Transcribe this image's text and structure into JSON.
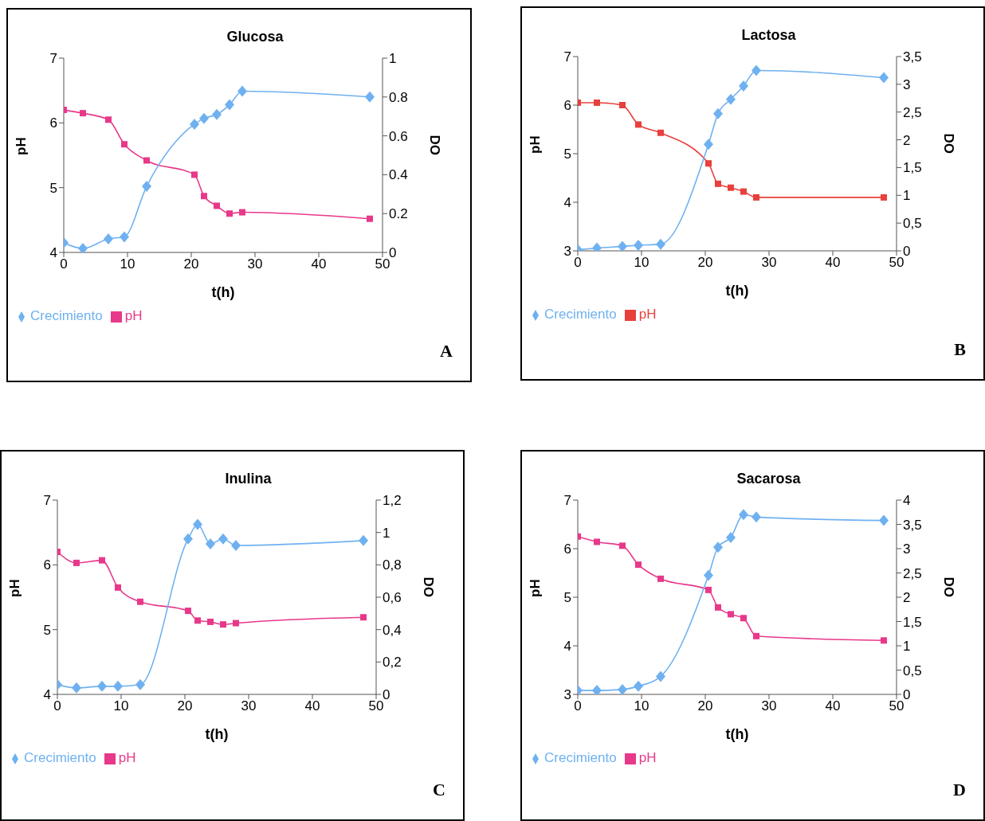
{
  "chart_data": [
    {
      "type": "line",
      "title": "Glucosa",
      "xlabel": "t(h)",
      "ylabel": "pH",
      "y2label": "DO",
      "x": [
        0,
        3,
        7,
        9.5,
        13,
        20.5,
        22,
        24,
        26,
        28,
        48
      ],
      "xlim": [
        0,
        50
      ],
      "xticks": [
        0,
        10,
        20,
        30,
        40,
        50
      ],
      "ylim": [
        4,
        7
      ],
      "yticks": [
        4,
        5,
        6,
        7
      ],
      "y2lim": [
        0,
        1
      ],
      "y2ticks": [
        0,
        0.2,
        0.4,
        0.6,
        0.8,
        1
      ],
      "legend": "bottom left",
      "grid": false,
      "line_style": "solid",
      "annotations": [
        "A"
      ],
      "series": [
        {
          "name": "pH",
          "color": "#e8388a",
          "marker": "square",
          "values": [
            6.2,
            6.15,
            6.05,
            5.67,
            5.42,
            5.2,
            4.87,
            4.72,
            4.6,
            4.62,
            4.52
          ]
        },
        {
          "name": "Crecimiento",
          "color": "#6fb1f0",
          "marker": "diamond",
          "axis": "y2",
          "values": [
            0.05,
            0.02,
            0.07,
            0.08,
            0.34,
            0.66,
            0.69,
            0.71,
            0.76,
            0.83,
            0.8
          ]
        }
      ]
    },
    {
      "type": "line",
      "title": "Lactosa",
      "xlabel": "t(h)",
      "ylabel": "pH",
      "y2label": "DO",
      "x": [
        0,
        3,
        7,
        9.5,
        13,
        20.5,
        22,
        24,
        26,
        28,
        48
      ],
      "xlim": [
        0,
        50
      ],
      "xticks": [
        0,
        10,
        20,
        30,
        40,
        50
      ],
      "ylim": [
        3,
        7
      ],
      "yticks": [
        3,
        4,
        5,
        6,
        7
      ],
      "y2lim": [
        0,
        3.5
      ],
      "y2ticks": [
        0,
        {
          "value": 0.5,
          "label": "0,5"
        },
        1,
        {
          "value": 1.5,
          "label": "1,5"
        },
        2,
        {
          "value": 2.5,
          "label": "2,5"
        },
        3,
        {
          "value": 3.5,
          "label": "3,5"
        }
      ],
      "legend": "bottom left",
      "grid": false,
      "line_style": "solid",
      "annotations": [
        "B"
      ],
      "series": [
        {
          "name": "pH",
          "color": "#e8403c",
          "marker": "square",
          "values": [
            6.05,
            6.05,
            6.0,
            5.6,
            5.43,
            4.8,
            4.38,
            4.3,
            4.22,
            4.1,
            4.1
          ]
        },
        {
          "name": "Crecimiento",
          "color": "#6fb1f0",
          "marker": "diamond",
          "axis": "y2",
          "values": [
            0.02,
            0.05,
            0.08,
            0.1,
            0.12,
            1.92,
            2.47,
            2.73,
            2.97,
            3.25,
            3.12
          ]
        }
      ]
    },
    {
      "type": "line",
      "title": "Inulina",
      "xlabel": "t(h)",
      "ylabel": "pH",
      "y2label": "DO",
      "x": [
        0,
        3,
        7,
        9.5,
        13,
        20.5,
        22,
        24,
        26,
        28,
        48
      ],
      "xlim": [
        0,
        50
      ],
      "xticks": [
        0,
        10,
        20,
        30,
        40,
        50
      ],
      "ylim": [
        4,
        7
      ],
      "yticks": [
        4,
        5,
        6,
        7
      ],
      "y2lim": [
        0,
        1.2
      ],
      "y2ticks": [
        0,
        {
          "value": 0.2,
          "label": "0,2"
        },
        {
          "value": 0.4,
          "label": "0,4"
        },
        {
          "value": 0.6,
          "label": "0,6"
        },
        {
          "value": 0.8,
          "label": "0,8"
        },
        1,
        {
          "value": 1.2,
          "label": "1,2"
        }
      ],
      "legend": "bottom left",
      "grid": false,
      "line_style": "solid",
      "annotations": [
        "C"
      ],
      "series": [
        {
          "name": "pH",
          "color": "#e8388a",
          "marker": "square",
          "values": [
            6.2,
            6.03,
            6.07,
            5.65,
            5.43,
            5.29,
            5.14,
            5.12,
            5.08,
            5.1,
            5.19
          ]
        },
        {
          "name": "Crecimiento",
          "color": "#6fb1f0",
          "marker": "diamond",
          "axis": "y2",
          "values": [
            0.06,
            0.04,
            0.05,
            0.05,
            0.06,
            0.96,
            1.05,
            0.93,
            0.96,
            0.92,
            0.95
          ]
        }
      ]
    },
    {
      "type": "line",
      "title": "Sacarosa",
      "xlabel": "t(h)",
      "ylabel": "pH",
      "y2label": "DO",
      "x": [
        0,
        3,
        7,
        9.5,
        13,
        20.5,
        22,
        24,
        26,
        28,
        48
      ],
      "xlim": [
        0,
        50
      ],
      "xticks": [
        0,
        10,
        20,
        30,
        40,
        50
      ],
      "ylim": [
        3,
        7
      ],
      "yticks": [
        3,
        4,
        5,
        6,
        7
      ],
      "y2lim": [
        0,
        4
      ],
      "y2ticks": [
        0,
        {
          "value": 0.5,
          "label": "0,5"
        },
        1,
        {
          "value": 1.5,
          "label": "1,5"
        },
        2,
        {
          "value": 2.5,
          "label": "2,5"
        },
        3,
        {
          "value": 3.5,
          "label": "3,5"
        },
        4
      ],
      "legend": "bottom left",
      "grid": false,
      "line_style": "solid",
      "annotations": [
        "D"
      ],
      "series": [
        {
          "name": "pH",
          "color": "#e8388a",
          "marker": "square",
          "values": [
            6.25,
            6.14,
            6.06,
            5.67,
            5.38,
            5.15,
            4.79,
            4.65,
            4.57,
            4.2,
            4.11
          ]
        },
        {
          "name": "Crecimiento",
          "color": "#6fb1f0",
          "marker": "diamond",
          "axis": "y2",
          "values": [
            0.08,
            0.08,
            0.1,
            0.17,
            0.37,
            2.45,
            3.03,
            3.23,
            3.7,
            3.65,
            3.58
          ]
        }
      ]
    }
  ]
}
